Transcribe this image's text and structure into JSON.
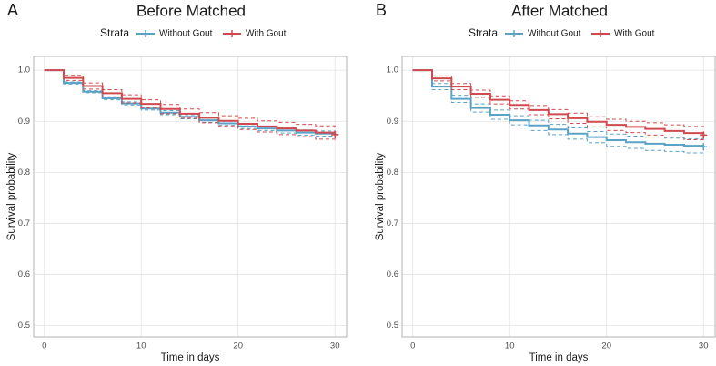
{
  "chart_data": [
    {
      "type": "step",
      "panel": "A",
      "title": "Before Matched",
      "legend_title": "Strata",
      "x_label": "Time in days",
      "y_label": "Survival probability",
      "x": [
        0,
        2,
        4,
        6,
        8,
        10,
        12,
        14,
        16,
        18,
        20,
        22,
        24,
        26,
        28,
        30
      ],
      "xlim": [
        -1.1,
        31.2
      ],
      "ylim": [
        0.478,
        1.027
      ],
      "xticks": [
        0,
        10,
        20,
        30
      ],
      "yticks": [
        0.5,
        0.6,
        0.7,
        0.8,
        0.9,
        {
          "value": 1,
          "label": "1.0"
        }
      ],
      "grid": true,
      "series": [
        {
          "name": "Without Gout",
          "color": "#5aa3c6",
          "values": [
            1.0,
            0.975,
            0.958,
            0.945,
            0.935,
            0.925,
            0.917,
            0.909,
            0.902,
            0.896,
            0.89,
            0.886,
            0.882,
            0.878,
            0.876,
            0.874
          ],
          "lower": [
            1.0,
            0.973,
            0.956,
            0.942,
            0.932,
            0.922,
            0.913,
            0.905,
            0.898,
            0.892,
            0.886,
            0.882,
            0.877,
            0.873,
            0.871,
            0.869
          ],
          "upper": [
            1.0,
            0.977,
            0.96,
            0.948,
            0.938,
            0.928,
            0.921,
            0.913,
            0.906,
            0.9,
            0.894,
            0.89,
            0.887,
            0.883,
            0.881,
            0.879
          ]
        },
        {
          "name": "With Gout",
          "color": "#d1494e",
          "values": [
            1.0,
            0.985,
            0.969,
            0.955,
            0.944,
            0.934,
            0.924,
            0.915,
            0.907,
            0.901,
            0.895,
            0.89,
            0.886,
            0.882,
            0.878,
            0.874
          ],
          "lower": [
            1.0,
            0.98,
            0.963,
            0.948,
            0.936,
            0.926,
            0.915,
            0.906,
            0.897,
            0.891,
            0.884,
            0.879,
            0.874,
            0.87,
            0.865,
            0.861
          ],
          "upper": [
            1.0,
            0.99,
            0.975,
            0.962,
            0.952,
            0.942,
            0.933,
            0.924,
            0.917,
            0.911,
            0.906,
            0.901,
            0.898,
            0.894,
            0.891,
            0.887
          ]
        }
      ]
    },
    {
      "type": "step",
      "panel": "B",
      "title": "After Matched",
      "legend_title": "Strata",
      "x_label": "Time in days",
      "y_label": "Survival probability",
      "x": [
        0,
        2,
        4,
        6,
        8,
        10,
        12,
        14,
        16,
        18,
        20,
        22,
        24,
        26,
        28,
        30
      ],
      "xlim": [
        -1.1,
        31.2
      ],
      "ylim": [
        0.478,
        1.027
      ],
      "xticks": [
        0,
        10,
        20,
        30
      ],
      "yticks": [
        0.5,
        0.6,
        0.7,
        0.8,
        0.9,
        {
          "value": 1,
          "label": "1.0"
        }
      ],
      "grid": true,
      "series": [
        {
          "name": "Without Gout",
          "color": "#5aa3c6",
          "values": [
            1.0,
            0.968,
            0.944,
            0.926,
            0.913,
            0.902,
            0.892,
            0.884,
            0.876,
            0.869,
            0.863,
            0.859,
            0.856,
            0.854,
            0.852,
            0.85
          ],
          "lower": [
            1.0,
            0.962,
            0.937,
            0.918,
            0.904,
            0.893,
            0.882,
            0.874,
            0.865,
            0.858,
            0.851,
            0.847,
            0.843,
            0.841,
            0.838,
            0.836
          ],
          "upper": [
            1.0,
            0.974,
            0.951,
            0.934,
            0.922,
            0.911,
            0.902,
            0.894,
            0.887,
            0.88,
            0.875,
            0.871,
            0.869,
            0.867,
            0.866,
            0.864
          ]
        },
        {
          "name": "With Gout",
          "color": "#d1494e",
          "values": [
            1.0,
            0.984,
            0.968,
            0.954,
            0.942,
            0.932,
            0.922,
            0.914,
            0.906,
            0.899,
            0.893,
            0.889,
            0.885,
            0.881,
            0.877,
            0.873
          ],
          "lower": [
            1.0,
            0.979,
            0.962,
            0.947,
            0.934,
            0.924,
            0.913,
            0.905,
            0.896,
            0.889,
            0.882,
            0.878,
            0.873,
            0.869,
            0.864,
            0.86
          ],
          "upper": [
            1.0,
            0.989,
            0.974,
            0.961,
            0.95,
            0.94,
            0.931,
            0.923,
            0.916,
            0.909,
            0.904,
            0.9,
            0.897,
            0.893,
            0.89,
            0.886
          ]
        }
      ]
    }
  ]
}
